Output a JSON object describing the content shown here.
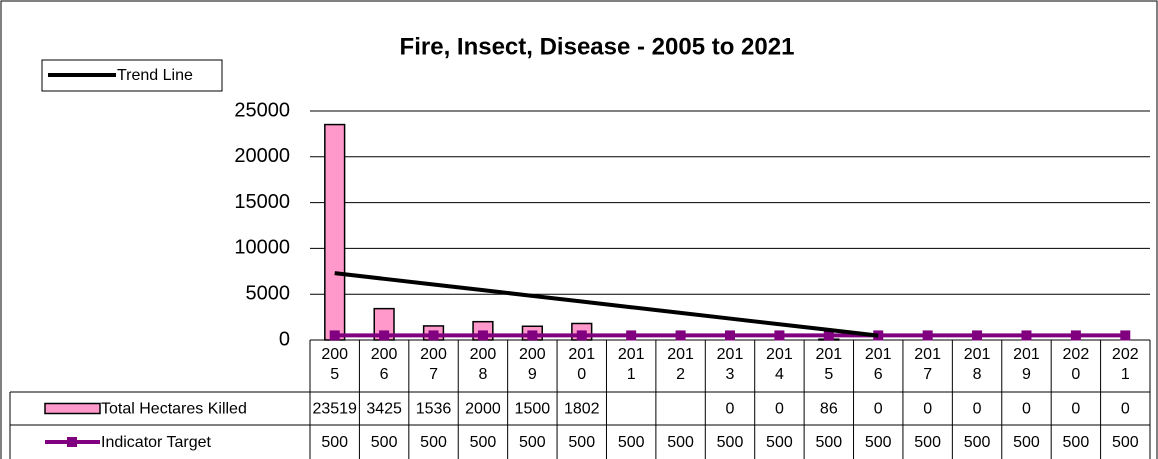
{
  "chart_data": {
    "type": "bar",
    "title": "Fire, Insect, Disease - 2005 to 2021",
    "categories": [
      "2005",
      "2006",
      "2007",
      "2008",
      "2009",
      "2010",
      "2011",
      "2012",
      "2013",
      "2014",
      "2015",
      "2016",
      "2017",
      "2018",
      "2019",
      "2020",
      "2021"
    ],
    "series": [
      {
        "name": "Total Hectares Killed",
        "type": "bar",
        "color": "#ff99cc",
        "values": [
          23519,
          3425,
          1536,
          2000,
          1500,
          1802,
          null,
          null,
          0,
          0,
          86,
          0,
          0,
          0,
          0,
          0,
          0
        ]
      },
      {
        "name": "Indicator Target",
        "type": "line",
        "color": "#800080",
        "values": [
          500,
          500,
          500,
          500,
          500,
          500,
          500,
          500,
          500,
          500,
          500,
          500,
          500,
          500,
          500,
          500,
          500
        ]
      },
      {
        "name": "Trend Line",
        "type": "trend",
        "color": "#000000",
        "values": [
          7300,
          6680,
          6060,
          5440,
          4820,
          4200,
          3580,
          2960,
          2340,
          1720,
          1100,
          480,
          null,
          null,
          null,
          null,
          null
        ]
      }
    ],
    "ylim": [
      0,
      25000
    ],
    "yticks": [
      0,
      5000,
      10000,
      15000,
      20000,
      25000
    ],
    "grid": true
  }
}
